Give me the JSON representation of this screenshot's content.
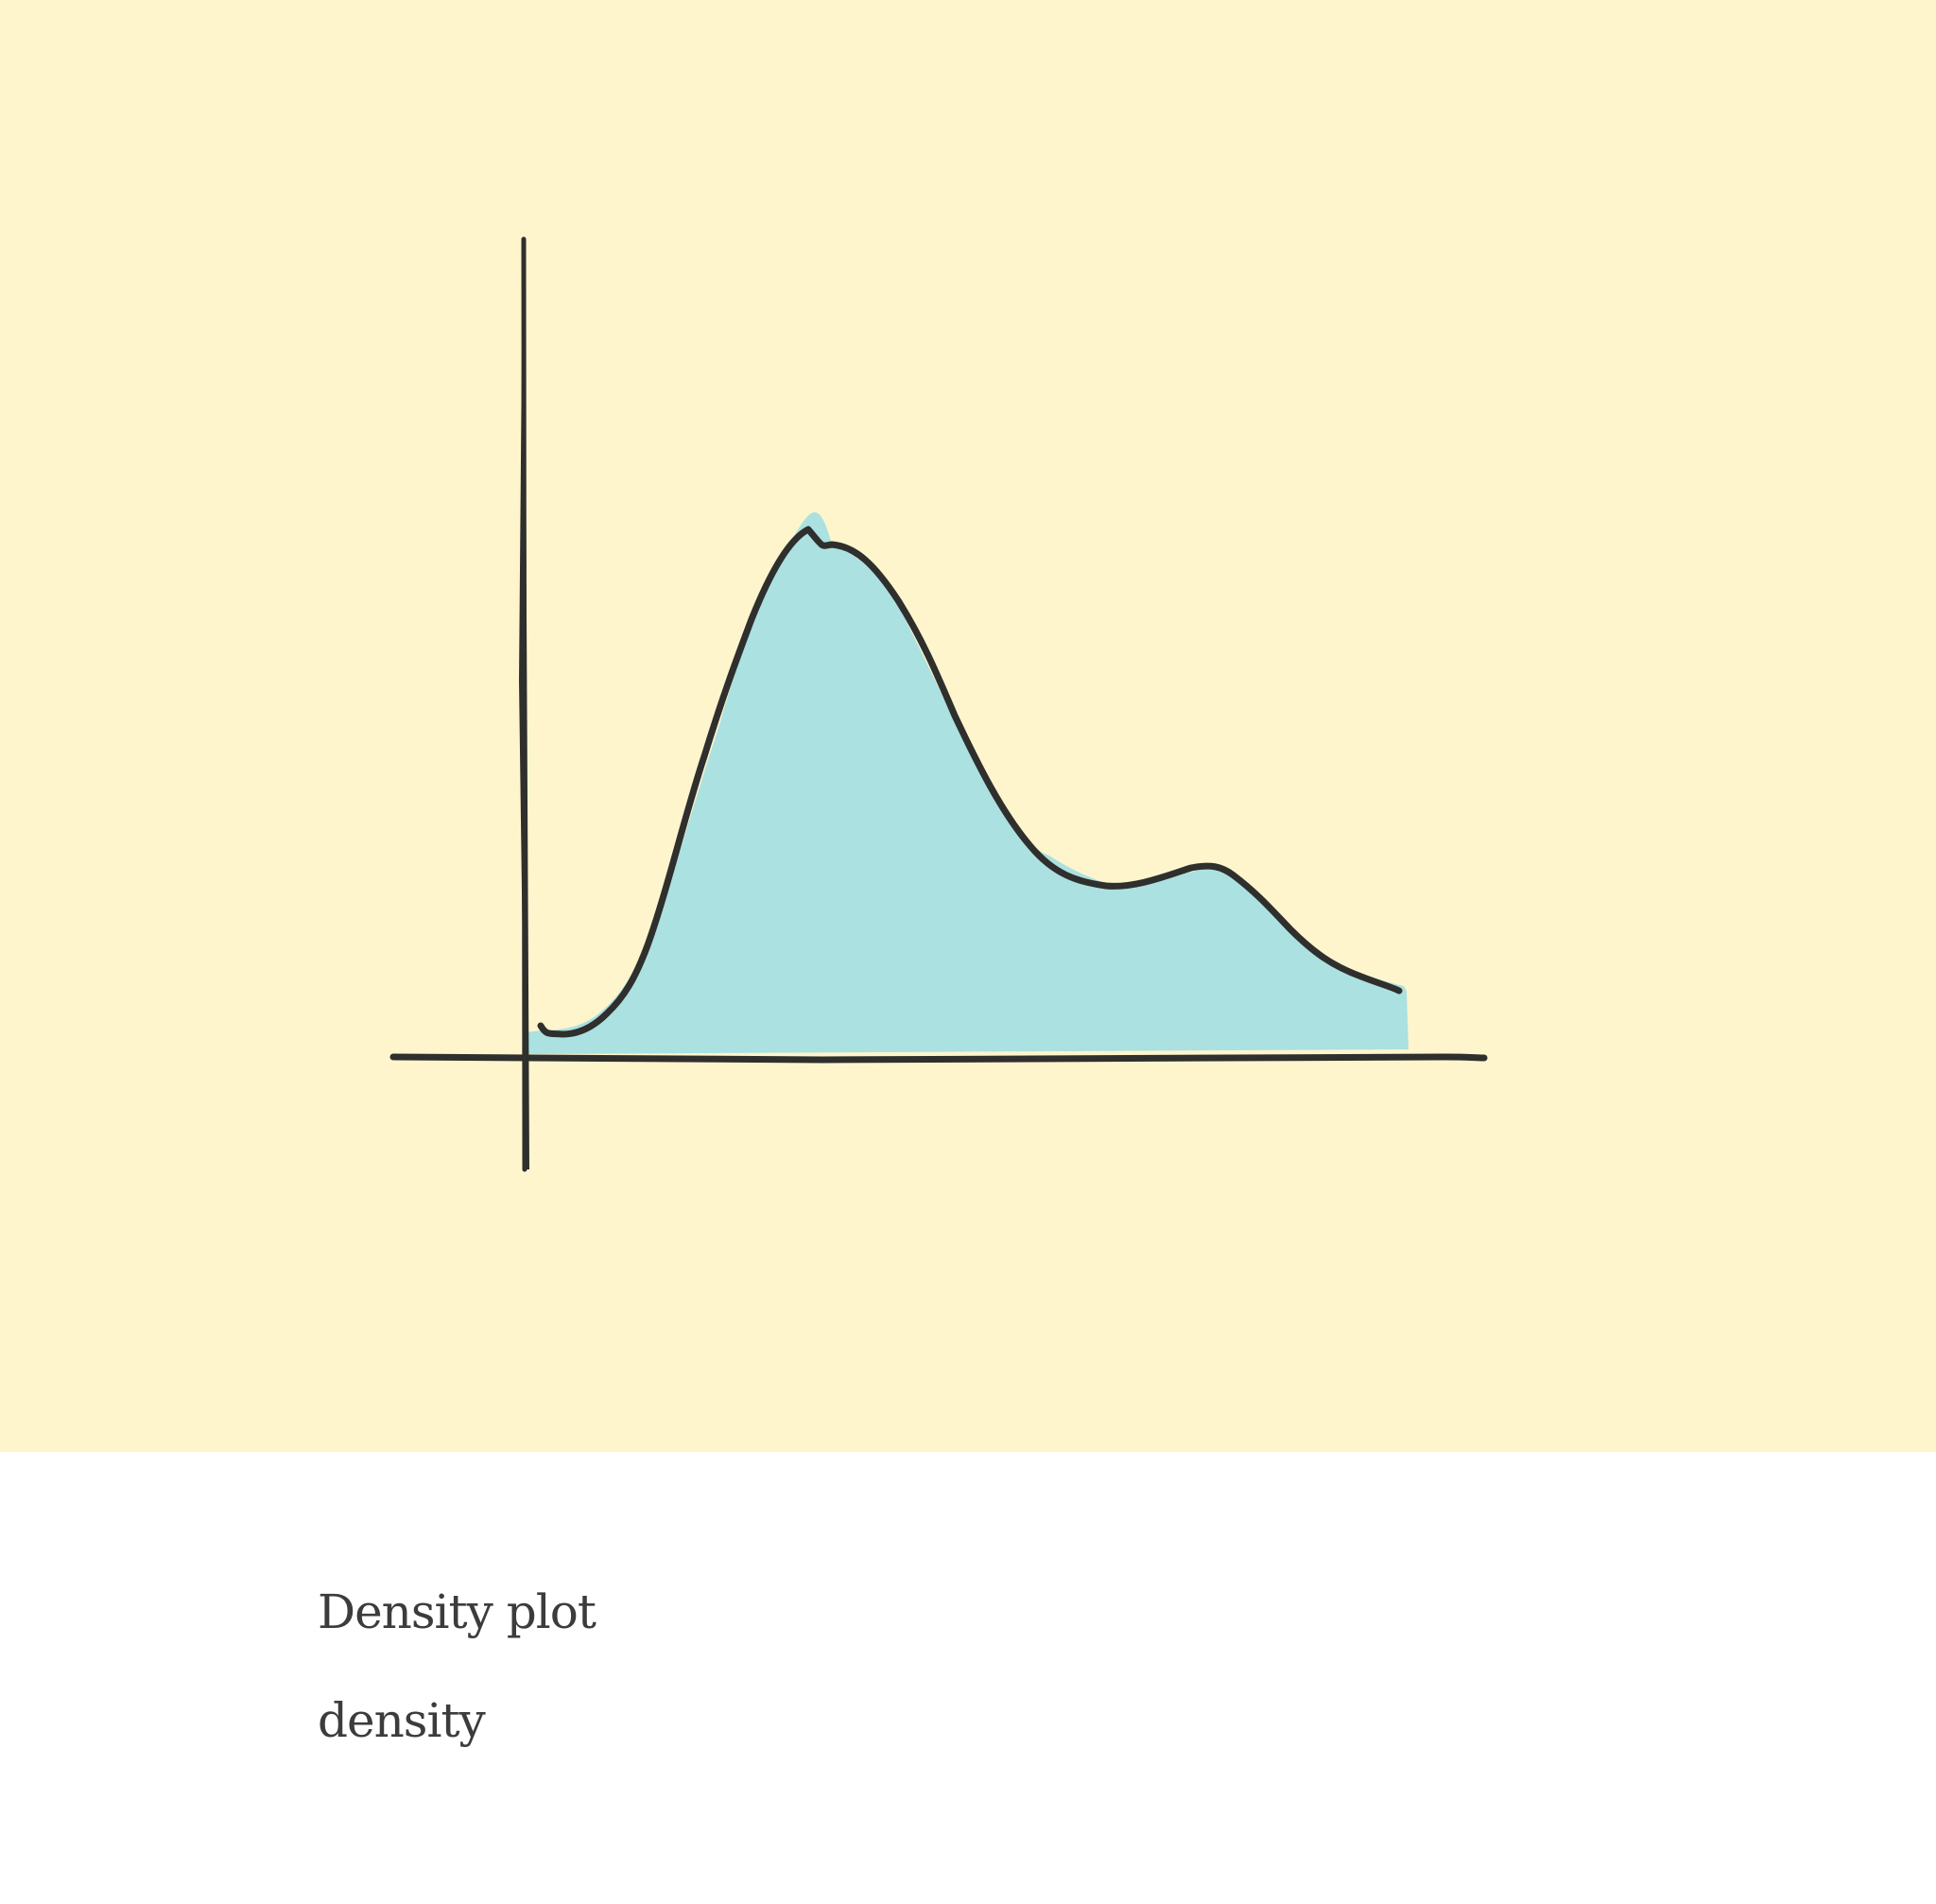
{
  "card": {
    "title": "Density plot",
    "subtitle": "density"
  },
  "colors": {
    "panel_background": "#fef5cd",
    "fill": "#abe1e0",
    "stroke": "#2f2f2d",
    "caption_text": "#3c3b3d",
    "page_background": "#ffffff"
  },
  "illustration": {
    "description_icon": "density-plot-illustration"
  }
}
